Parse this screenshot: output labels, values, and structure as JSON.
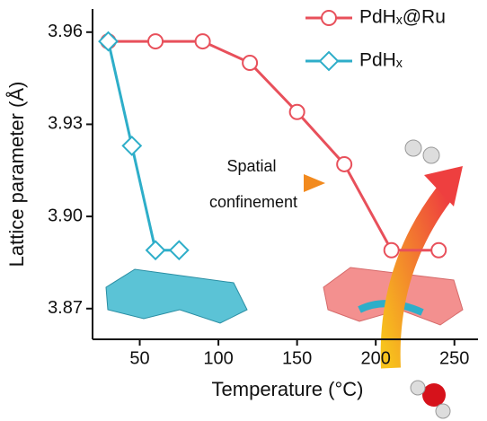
{
  "chart_data": {
    "type": "line",
    "x_label": "Temperature (°C)",
    "y_label": "Lattice parameter (Å)",
    "xlim": [
      20,
      265
    ],
    "xticks": [
      50,
      100,
      150,
      200,
      250
    ],
    "ylim": [
      3.86,
      3.969
    ],
    "yticks": [
      {
        "value": 3.87,
        "label": "3.87"
      },
      {
        "value": 3.9,
        "label": "3.90"
      },
      {
        "value": 3.93,
        "label": "3.93"
      },
      {
        "value": 3.96,
        "label": "3.96"
      }
    ],
    "legend": "upper right",
    "annotations": [
      "Spatial",
      "confinement"
    ],
    "series": [
      {
        "name": "PdHₓ@Ru",
        "color": "#e8505b",
        "marker": "circle",
        "x": [
          30,
          60,
          90,
          120,
          150,
          180,
          210,
          240
        ],
        "values": [
          3.957,
          3.957,
          3.957,
          3.95,
          3.934,
          3.917,
          3.889,
          3.889
        ]
      },
      {
        "name": "PdHₓ",
        "color": "#2eaec9",
        "marker": "diamond",
        "x": [
          30,
          45,
          60,
          75
        ],
        "values": [
          3.957,
          3.923,
          3.889,
          3.889
        ]
      }
    ]
  }
}
